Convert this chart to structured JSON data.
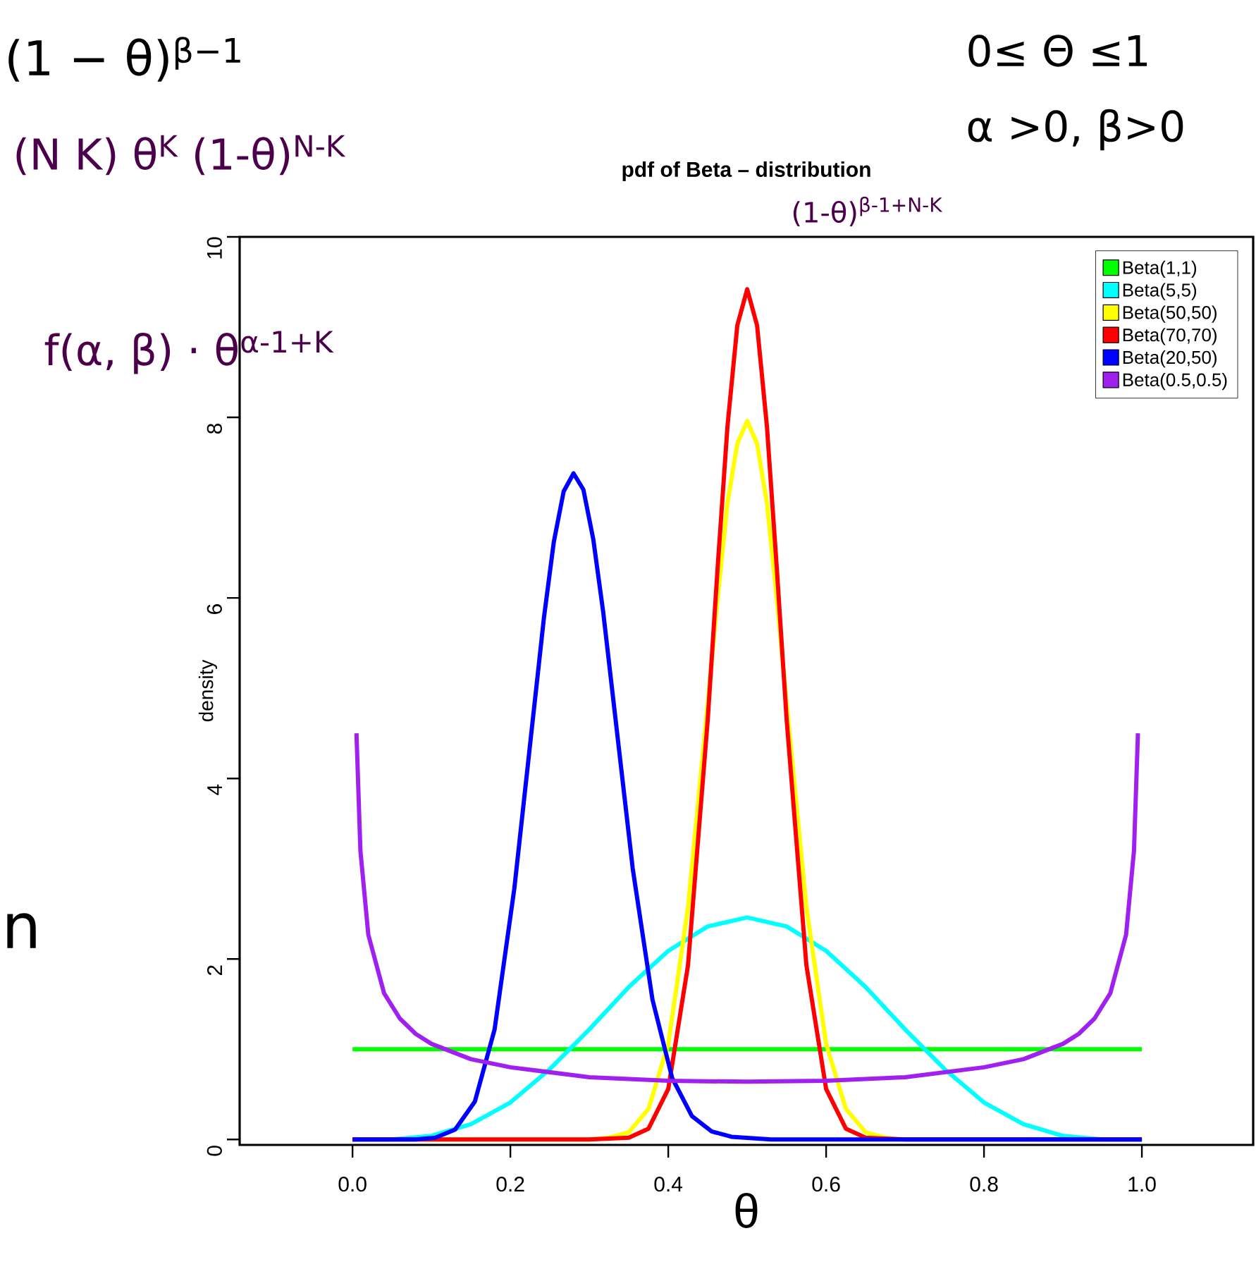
{
  "chart_data": {
    "type": "line",
    "title": "pdf of Beta – distribution",
    "xlabel": "θ",
    "ylabel": "density",
    "xlim": [
      -0.143,
      1.141
    ],
    "ylim": [
      -0.06,
      10
    ],
    "xticks": [
      {
        "value": 0,
        "label": "0.0"
      },
      {
        "value": 0.2,
        "label": "0.2"
      },
      {
        "value": 0.4,
        "label": "0.4"
      },
      {
        "value": 0.6,
        "label": "0.6"
      },
      {
        "value": 0.8,
        "label": "0.8"
      },
      {
        "value": 1,
        "label": "1.0"
      }
    ],
    "yticks": [
      0,
      2,
      4,
      6,
      8,
      10
    ],
    "grid": false,
    "legend": "top right",
    "marker": "none",
    "line_style": "solid",
    "annotations": [
      "(1 − θ)$^{β−1}$",
      "0≤ Θ ≤1",
      "α >0, β>0",
      "n",
      "(N K) θ$^{K}$ (1-θ)$^{N-K}$",
      "f(α, β) · θ$^{α-1+K}$",
      "(1-θ)$^{β-1+N-K}$"
    ],
    "series": [
      {
        "name": "Beta(1,1)",
        "color": "#00ff00",
        "x": [
          0,
          1
        ],
        "values": [
          1,
          1
        ]
      },
      {
        "name": "Beta(5,5)",
        "color": "#00ffff",
        "x": [
          0,
          0.05,
          0.1,
          0.15,
          0.2,
          0.25,
          0.3,
          0.35,
          0.4,
          0.45,
          0.5,
          0.55,
          0.6,
          0.65,
          0.7,
          0.75,
          0.8,
          0.85,
          0.9,
          0.95,
          1
        ],
        "values": [
          0,
          0,
          0.04,
          0.17,
          0.41,
          0.78,
          1.22,
          1.69,
          2.09,
          2.36,
          2.46,
          2.36,
          2.09,
          1.69,
          1.22,
          0.78,
          0.41,
          0.17,
          0.04,
          0,
          0
        ]
      },
      {
        "name": "Beta(50,50)",
        "color": "#ffff00",
        "x": [
          0,
          0.3,
          0.325,
          0.35,
          0.375,
          0.4,
          0.425,
          0.45,
          0.4625,
          0.475,
          0.4875,
          0.5,
          0.5125,
          0.525,
          0.5375,
          0.55,
          0.575,
          0.6,
          0.625,
          0.65,
          0.675,
          0.7,
          1
        ],
        "values": [
          0,
          0,
          0.02,
          0.08,
          0.34,
          1.06,
          2.57,
          4.83,
          5.99,
          7.05,
          7.71,
          7.96,
          7.71,
          7.05,
          5.99,
          4.83,
          2.57,
          1.06,
          0.34,
          0.08,
          0.02,
          0,
          0
        ]
      },
      {
        "name": "Beta(70,70)",
        "color": "#ff0000",
        "x": [
          0,
          0.3,
          0.35,
          0.375,
          0.4,
          0.425,
          0.45,
          0.4625,
          0.475,
          0.4875,
          0.5,
          0.5125,
          0.525,
          0.5375,
          0.55,
          0.575,
          0.6,
          0.625,
          0.65,
          0.7,
          1
        ],
        "values": [
          0,
          0,
          0.02,
          0.12,
          0.56,
          1.93,
          4.65,
          6.33,
          7.9,
          9.02,
          9.42,
          9.02,
          7.9,
          6.33,
          4.65,
          1.93,
          0.56,
          0.12,
          0.02,
          0,
          0
        ]
      },
      {
        "name": "Beta(20,50)",
        "color": "#0000ff",
        "x": [
          0,
          0.08,
          0.105,
          0.13,
          0.155,
          0.18,
          0.205,
          0.23,
          0.2425,
          0.255,
          0.2675,
          0.28,
          0.2925,
          0.305,
          0.3175,
          0.33,
          0.355,
          0.38,
          0.405,
          0.43,
          0.455,
          0.48,
          0.53,
          0.6,
          1
        ],
        "values": [
          0,
          0,
          0.02,
          0.11,
          0.42,
          1.22,
          2.78,
          4.78,
          5.78,
          6.62,
          7.18,
          7.38,
          7.2,
          6.65,
          5.85,
          4.9,
          3.0,
          1.55,
          0.68,
          0.26,
          0.09,
          0.03,
          0,
          0,
          0
        ]
      },
      {
        "name": "Beta(0.5,0.5)",
        "color": "#a020f0",
        "x": [
          0.005,
          0.01,
          0.02,
          0.04,
          0.06,
          0.08,
          0.1,
          0.15,
          0.2,
          0.3,
          0.4,
          0.5,
          0.6,
          0.7,
          0.8,
          0.85,
          0.9,
          0.92,
          0.94,
          0.96,
          0.98,
          0.99,
          0.995
        ],
        "values": [
          4.5,
          3.2,
          2.27,
          1.62,
          1.34,
          1.17,
          1.06,
          0.89,
          0.8,
          0.69,
          0.65,
          0.64,
          0.65,
          0.69,
          0.8,
          0.89,
          1.06,
          1.17,
          1.34,
          1.62,
          2.27,
          3.2,
          4.5
        ]
      }
    ]
  }
}
